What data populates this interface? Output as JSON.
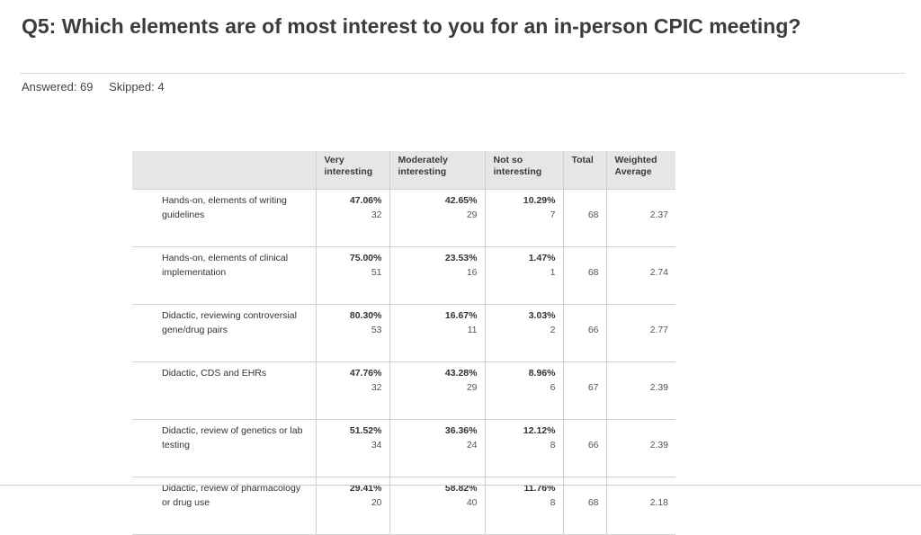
{
  "question": {
    "title": "Q5: Which elements are of most interest to you for an in-person CPIC meeting?",
    "answered": "Answered: 69",
    "skipped": "Skipped: 4"
  },
  "table": {
    "headers": {
      "very": [
        "Very",
        "interesting"
      ],
      "moderately": [
        "Moderately",
        "interesting"
      ],
      "not_so": [
        "Not so",
        "interesting"
      ],
      "total": "Total",
      "weighted": [
        "Weighted",
        "Average"
      ]
    },
    "rows": [
      {
        "label": "Hands-on, elements of writing guidelines",
        "very_pct": "47.06%",
        "very_n": "32",
        "mod_pct": "42.65%",
        "mod_n": "29",
        "not_pct": "10.29%",
        "not_n": "7",
        "total": "68",
        "weighted": "2.37"
      },
      {
        "label": "Hands-on, elements of clinical implementation",
        "very_pct": "75.00%",
        "very_n": "51",
        "mod_pct": "23.53%",
        "mod_n": "16",
        "not_pct": "1.47%",
        "not_n": "1",
        "total": "68",
        "weighted": "2.74"
      },
      {
        "label": "Didactic, reviewing controversial gene/drug pairs",
        "very_pct": "80.30%",
        "very_n": "53",
        "mod_pct": "16.67%",
        "mod_n": "11",
        "not_pct": "3.03%",
        "not_n": "2",
        "total": "66",
        "weighted": "2.77"
      },
      {
        "label": "Didactic, CDS and EHRs",
        "very_pct": "47.76%",
        "very_n": "32",
        "mod_pct": "43.28%",
        "mod_n": "29",
        "not_pct": "8.96%",
        "not_n": "6",
        "total": "67",
        "weighted": "2.39"
      },
      {
        "label": "Didactic, review of genetics or lab testing",
        "very_pct": "51.52%",
        "very_n": "34",
        "mod_pct": "36.36%",
        "mod_n": "24",
        "not_pct": "12.12%",
        "not_n": "8",
        "total": "66",
        "weighted": "2.39"
      },
      {
        "label": "Didactic, review of pharmacology or drug use",
        "very_pct": "29.41%",
        "very_n": "20",
        "mod_pct": "58.82%",
        "mod_n": "40",
        "not_pct": "11.76%",
        "not_n": "8",
        "total": "68",
        "weighted": "2.18"
      }
    ]
  }
}
